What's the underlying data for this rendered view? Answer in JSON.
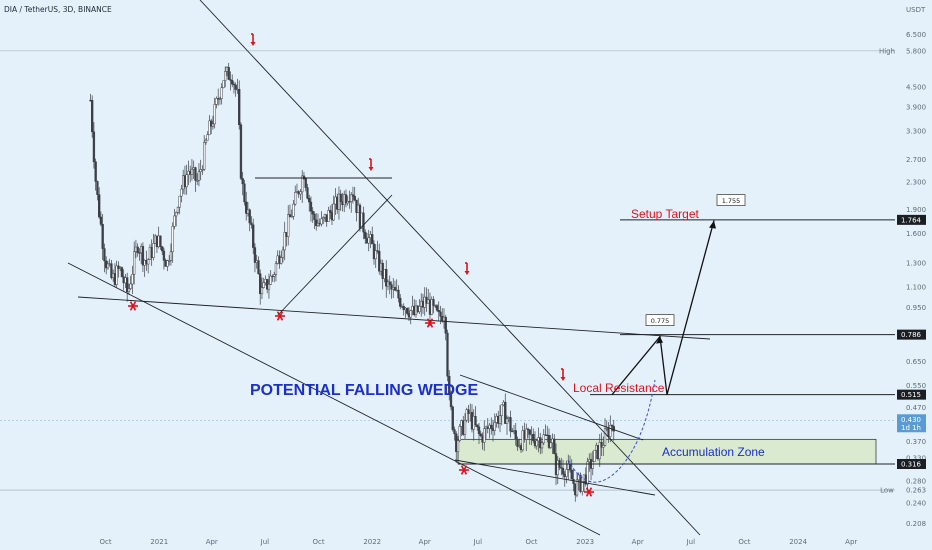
{
  "header": {
    "symbol": "DIA / TetherUS, 3D, BINANCE",
    "currency": "USDT"
  },
  "colors": {
    "background": "#e4f1fb",
    "up": "#3b3f45",
    "down": "#3b3f45",
    "annotation_red": "#e0111b",
    "annotation_blue": "#1b2fc9",
    "zone_fill": "#d9ead0",
    "line": "#1f2328",
    "price_badge": "#5b9bd5"
  },
  "chart_data": {
    "type": "candlestick",
    "title": "",
    "xlabel": "",
    "ylabel": "",
    "y_scale": "log",
    "ylim": [
      0.185,
      8.3
    ],
    "x_ticks": [
      "Oct",
      "2021",
      "Apr",
      "Jul",
      "Oct",
      "2022",
      "Apr",
      "Jul",
      "Oct",
      "2023",
      "Apr",
      "Jul",
      "Oct",
      "2024",
      "Apr"
    ],
    "y_ticks": [
      "6.500",
      "5.800",
      "4.500",
      "3.900",
      "3.300",
      "2.700",
      "2.300",
      "1.900",
      "1.600",
      "1.300",
      "1.100",
      "0.950",
      "0.786",
      "0.650",
      "0.550",
      "0.515",
      "0.470",
      "0.430",
      "0.370",
      "0.330",
      "0.316",
      "0.280",
      "0.263",
      "0.240",
      "0.208"
    ],
    "price_path": [
      {
        "date": "2020-09-05",
        "close": 4.1
      },
      {
        "date": "2020-09-15",
        "close": 2.2
      },
      {
        "date": "2020-09-30",
        "close": 1.35
      },
      {
        "date": "2020-10-12",
        "close": 1.15
      },
      {
        "date": "2020-10-25",
        "close": 1.25
      },
      {
        "date": "2020-11-08",
        "close": 1.05
      },
      {
        "date": "2020-11-25",
        "close": 1.5
      },
      {
        "date": "2020-12-10",
        "close": 1.3
      },
      {
        "date": "2020-12-28",
        "close": 1.55
      },
      {
        "date": "2021-01-15",
        "close": 1.3
      },
      {
        "date": "2021-02-03",
        "close": 2.1
      },
      {
        "date": "2021-02-20",
        "close": 2.5
      },
      {
        "date": "2021-03-08",
        "close": 2.3
      },
      {
        "date": "2021-03-25",
        "close": 3.2
      },
      {
        "date": "2021-04-05",
        "close": 3.7
      },
      {
        "date": "2021-04-20",
        "close": 4.8
      },
      {
        "date": "2021-05-05",
        "close": 5.0
      },
      {
        "date": "2021-05-15",
        "close": 4.2
      },
      {
        "date": "2021-05-22",
        "close": 2.3
      },
      {
        "date": "2021-06-08",
        "close": 1.6
      },
      {
        "date": "2021-06-25",
        "close": 1.05
      },
      {
        "date": "2021-07-15",
        "close": 1.2
      },
      {
        "date": "2021-08-05",
        "close": 1.6
      },
      {
        "date": "2021-08-25",
        "close": 2.1
      },
      {
        "date": "2021-09-06",
        "close": 2.5
      },
      {
        "date": "2021-09-20",
        "close": 1.8
      },
      {
        "date": "2021-10-05",
        "close": 1.7
      },
      {
        "date": "2021-10-25",
        "close": 1.9
      },
      {
        "date": "2021-11-10",
        "close": 2.05
      },
      {
        "date": "2021-11-28",
        "close": 2.2
      },
      {
        "date": "2021-12-10",
        "close": 1.8
      },
      {
        "date": "2022-01-05",
        "close": 1.4
      },
      {
        "date": "2022-01-28",
        "close": 1.1
      },
      {
        "date": "2022-02-20",
        "close": 1.0
      },
      {
        "date": "2022-03-15",
        "close": 0.9
      },
      {
        "date": "2022-04-03",
        "close": 1.0
      },
      {
        "date": "2022-04-25",
        "close": 0.88
      },
      {
        "date": "2022-05-06",
        "close": 0.95
      },
      {
        "date": "2022-05-12",
        "close": 0.5
      },
      {
        "date": "2022-05-25",
        "close": 0.37
      },
      {
        "date": "2022-06-15",
        "close": 0.45
      },
      {
        "date": "2022-07-05",
        "close": 0.38
      },
      {
        "date": "2022-07-25",
        "close": 0.42
      },
      {
        "date": "2022-08-15",
        "close": 0.46
      },
      {
        "date": "2022-09-05",
        "close": 0.37
      },
      {
        "date": "2022-09-25",
        "close": 0.38
      },
      {
        "date": "2022-10-15",
        "close": 0.38
      },
      {
        "date": "2022-11-05",
        "close": 0.38
      },
      {
        "date": "2022-11-10",
        "close": 0.31
      },
      {
        "date": "2022-11-28",
        "close": 0.31
      },
      {
        "date": "2022-12-15",
        "close": 0.27
      },
      {
        "date": "2022-12-28",
        "close": 0.28
      },
      {
        "date": "2023-01-12",
        "close": 0.32
      },
      {
        "date": "2023-01-28",
        "close": 0.36
      },
      {
        "date": "2023-02-12",
        "close": 0.41
      },
      {
        "date": "2023-02-20",
        "close": 0.43
      }
    ],
    "labels": {
      "high": "High",
      "high_value": "5.800",
      "low": "Low",
      "low_value": "0.263",
      "current_price": "0.430",
      "countdown": "1d 1h"
    },
    "levels": [
      {
        "name": "Setup Target",
        "value": 1.764,
        "label": "1.764"
      },
      {
        "name": "",
        "value": 0.786,
        "label": "0.786"
      },
      {
        "name": "Local Resistance",
        "value": 0.515,
        "label": "0.515"
      },
      {
        "name": "",
        "value": 0.316,
        "label": "0.316"
      }
    ],
    "projection": [
      {
        "date": "2023-03-15",
        "value": 0.515
      },
      {
        "date": "2023-04-20",
        "value": 0.775
      },
      {
        "date": "2023-05-10",
        "value": 0.515
      },
      {
        "date": "2023-06-20",
        "value": 1.755
      }
    ],
    "projection_labels": [
      "0.775",
      "1.755"
    ],
    "annotations": [
      "POTENTIAL FALLING WEDGE",
      "Accumulation Zone",
      "Local Resistance",
      "Setup Target"
    ]
  }
}
